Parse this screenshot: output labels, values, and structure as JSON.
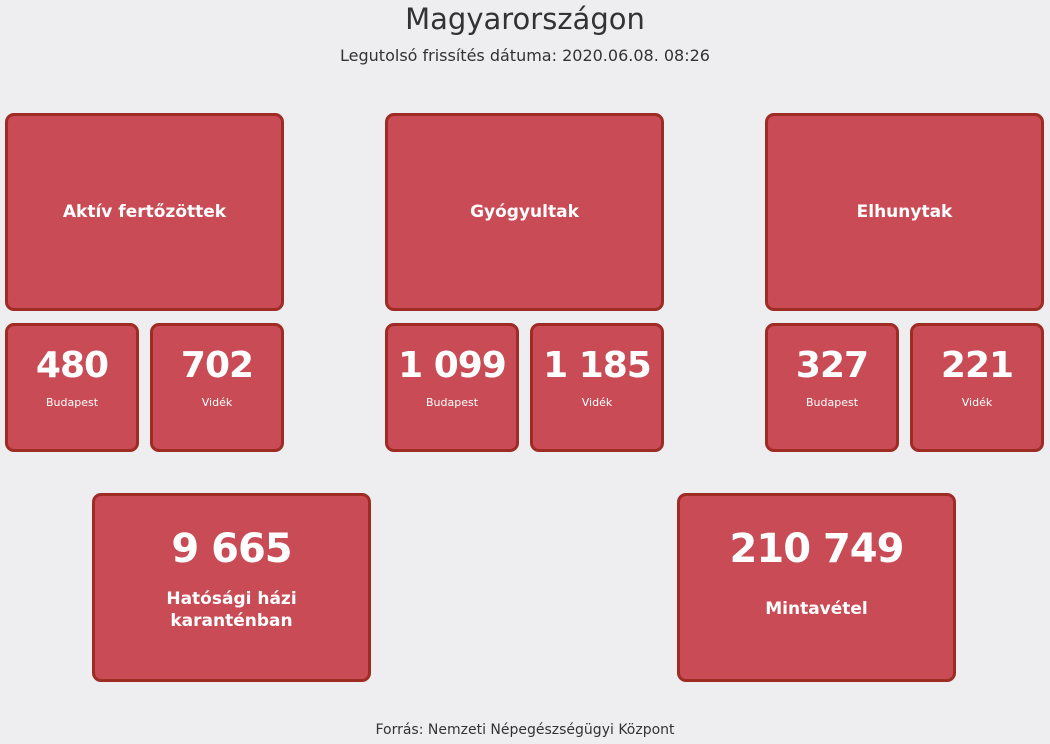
{
  "header": {
    "title": "Magyarországon",
    "updated": "Legutolsó frissítés dátuma: 2020.06.08. 08:26"
  },
  "groups": [
    {
      "title": "Aktív fertőzöttek",
      "budapest": "480",
      "videk": "702"
    },
    {
      "title": "Gyógyultak",
      "budapest": "1 099",
      "videk": "1 185"
    },
    {
      "title": "Elhunytak",
      "budapest": "327",
      "videk": "221"
    }
  ],
  "labels": {
    "budapest": "Budapest",
    "videk": "Vidék"
  },
  "bottom": [
    {
      "value": "9 665",
      "label": "Hatósági házi karanténban"
    },
    {
      "value": "210 749",
      "label": "Mintavétel"
    }
  ],
  "footer": "Forrás: Nemzeti Népegészségügyi Központ",
  "colors": {
    "card": "#c94b55",
    "border": "#9e2b24",
    "background": "#eeeef0"
  }
}
